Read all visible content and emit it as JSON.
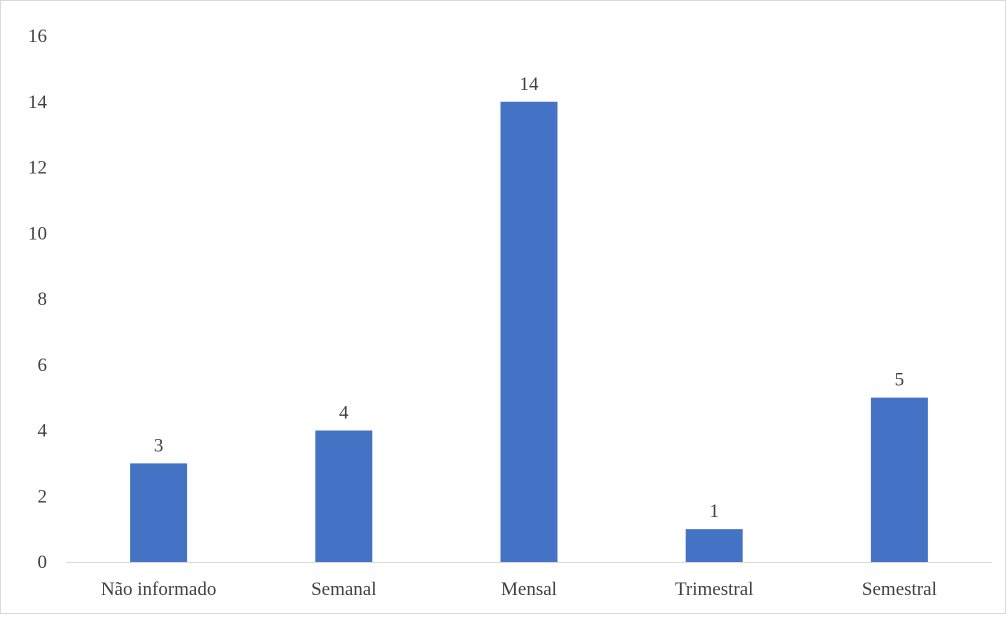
{
  "chart_data": {
    "type": "bar",
    "title": "",
    "xlabel": "",
    "ylabel": "",
    "categories": [
      "Não informado",
      "Semanal",
      "Mensal",
      "Trimestral",
      "Semestral"
    ],
    "values": [
      3,
      4,
      14,
      1,
      5
    ],
    "data_labels": [
      "3",
      "4",
      "14",
      "1",
      "5"
    ],
    "ylim": [
      0,
      16
    ],
    "yticks": [
      0,
      2,
      4,
      6,
      8,
      10,
      12,
      14,
      16
    ],
    "ytick_labels": [
      "0",
      "2",
      "4",
      "6",
      "8",
      "10",
      "12",
      "14",
      "16"
    ],
    "grid": false,
    "legend": "none",
    "colors": {
      "bar": "#4472C4",
      "axis": "#D9D9D9",
      "text": "#404040",
      "border": "#D9D9D9"
    }
  }
}
